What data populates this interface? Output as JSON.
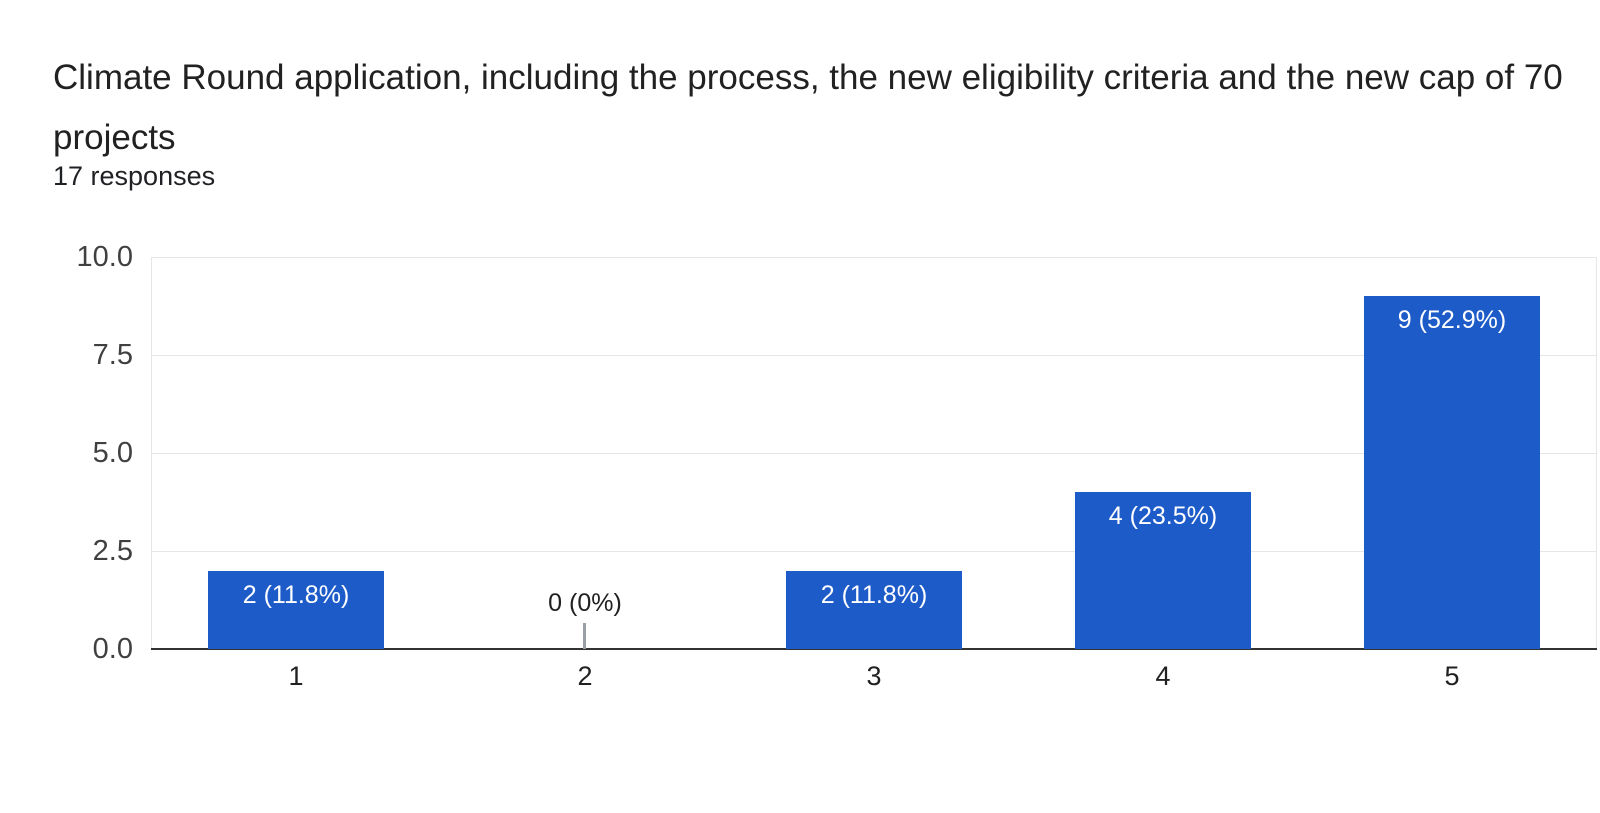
{
  "chart_data": {
    "type": "bar",
    "title": "Climate Round application, including the process, the new eligibility criteria and the new cap of 70 projects",
    "subtitle": "17 responses",
    "total_responses": 17,
    "categories": [
      "1",
      "2",
      "3",
      "4",
      "5"
    ],
    "values": [
      2,
      0,
      2,
      4,
      9
    ],
    "bar_labels": [
      "2 (11.8%)",
      "0 (0%)",
      "2 (11.8%)",
      "4 (23.5%)",
      "9 (52.9%)"
    ],
    "xlabel": "",
    "ylabel": "",
    "ylim": [
      0,
      10
    ],
    "yticks": [
      0,
      2.5,
      5,
      7.5,
      10
    ],
    "ytick_labels": [
      "0.0",
      "2.5",
      "5.0",
      "7.5",
      "10.0"
    ],
    "grid": true,
    "legend": "none",
    "colors": {
      "bar": "#1d5bc9",
      "bar_label_text": "#ffffff",
      "zero_label_text": "#212121",
      "zero_stub": "#9aa0a6",
      "y_axis_text": "#404040",
      "x_axis_text": "#212121",
      "gridline": "#e6e6e6",
      "baseline": "#333333",
      "title_text": "#212121"
    }
  }
}
